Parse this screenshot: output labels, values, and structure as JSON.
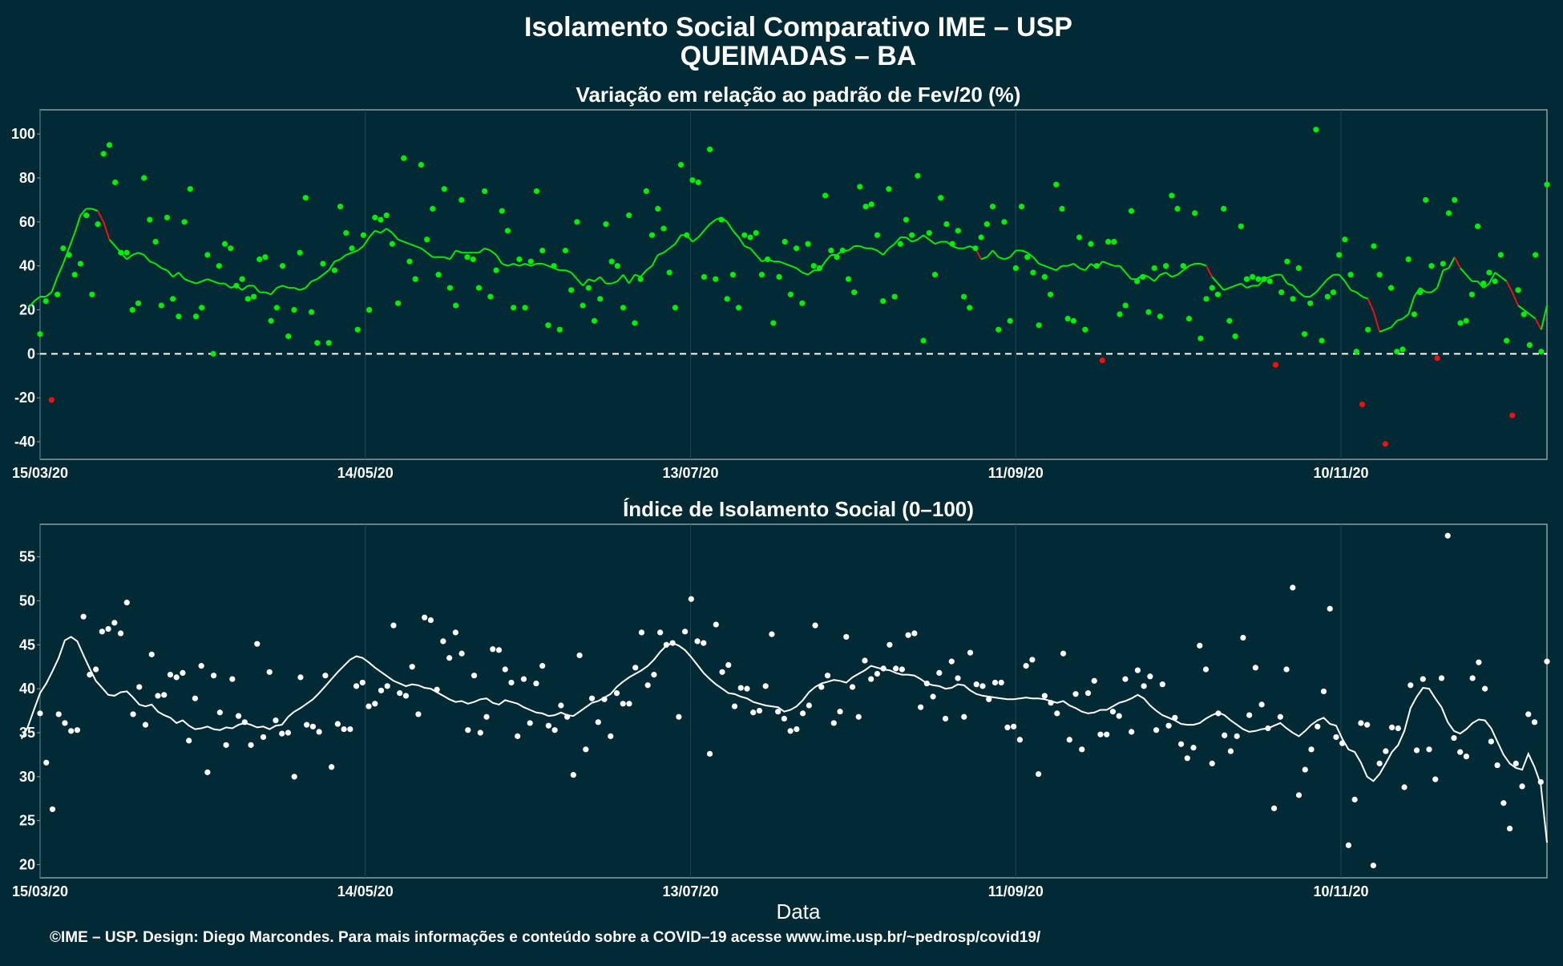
{
  "title_line1": "Isolamento Social Comparativo IME – USP",
  "title_line2": "QUEIMADAS – BA",
  "footer": "©IME – USP. Design: Diego Marcondes. Para mais informações e conteúdo sobre a COVID–19 acesse www.ime.usp.br/~pedrosp/covid19/",
  "colors": {
    "background": "#022a35",
    "panel_border": "#8aa0a6",
    "grid": "#1e4a55",
    "positive": "#00ee00",
    "negative": "#ee1111",
    "index": "#ffffff"
  },
  "chart_data": [
    {
      "type": "scatter",
      "title": "Variação em relação ao padrão de Fev/20 (%)",
      "xlabel": "",
      "ylabel": "",
      "x_ticks": [
        "15/03/20",
        "14/05/20",
        "13/07/20",
        "11/09/20",
        "10/11/20"
      ],
      "x_range": [
        "2020-03-15",
        "2020-12-18"
      ],
      "ylim": [
        -48,
        111
      ],
      "y_ticks": [
        -40,
        -20,
        0,
        20,
        40,
        60,
        80,
        100
      ],
      "reference_line": 0,
      "grid": true,
      "series": [
        {
          "role": "daily_points",
          "values": [
            9,
            24,
            -21,
            27,
            48,
            45,
            36,
            41,
            63,
            27,
            59,
            91,
            95,
            78,
            46,
            46,
            20,
            23,
            80,
            61,
            51,
            22,
            62,
            25,
            17,
            60,
            75,
            17,
            21,
            45,
            0,
            40,
            50,
            48,
            31,
            34,
            25,
            26,
            43,
            44,
            15,
            21,
            40,
            8,
            20,
            46,
            71,
            19,
            5,
            41,
            5,
            38,
            67,
            55,
            48,
            11,
            54,
            20,
            62,
            61,
            63,
            50,
            23,
            89,
            42,
            34,
            86,
            52,
            66,
            36,
            75,
            30,
            22,
            70,
            44,
            43,
            30,
            74,
            26,
            38,
            65,
            56,
            21,
            43,
            21,
            42,
            74,
            47,
            13,
            40,
            11,
            47,
            29,
            60,
            22,
            30,
            15,
            25,
            59,
            42,
            40,
            21,
            63,
            14,
            34,
            74,
            54,
            66,
            57,
            37,
            21,
            86,
            54,
            79,
            78,
            35,
            93,
            34,
            61,
            25,
            36,
            21,
            54,
            53,
            55,
            36,
            43,
            14,
            35,
            51,
            27,
            48,
            23,
            50,
            40,
            39,
            72,
            47,
            44,
            47,
            34,
            28,
            76,
            67,
            68,
            54,
            24,
            75,
            26,
            50,
            61,
            54,
            81,
            6,
            55,
            36,
            71,
            59,
            50,
            56,
            26,
            21,
            48,
            53,
            59,
            67,
            11,
            60,
            15,
            39,
            67,
            44,
            37,
            13,
            35,
            27,
            77,
            66,
            16,
            15,
            53,
            11,
            50,
            40,
            -3,
            51,
            51,
            18,
            22,
            65,
            33,
            35,
            19,
            39,
            17,
            40,
            72,
            66,
            40,
            16,
            64,
            7,
            25,
            30,
            27,
            66,
            15,
            8,
            58,
            34,
            35,
            34,
            34,
            33,
            -5,
            28,
            42,
            25,
            39,
            9,
            23,
            102,
            6,
            26,
            28,
            45,
            52,
            36,
            1,
            -23,
            11,
            49,
            36,
            -41,
            30,
            1,
            2,
            43,
            18,
            28,
            70,
            40,
            -2,
            41,
            64,
            70,
            14,
            15,
            27,
            58,
            32,
            37,
            33,
            45,
            6,
            -28,
            29,
            18,
            4,
            45,
            1,
            77
          ]
        },
        {
          "role": "moving_average",
          "values": [
            21,
            24,
            26,
            26,
            28,
            35,
            41,
            48,
            55,
            63,
            66,
            66,
            65,
            60,
            52,
            49,
            46,
            43,
            45,
            46,
            45,
            42,
            41,
            39,
            38,
            35,
            37,
            34,
            33,
            32,
            33,
            34,
            33,
            32,
            32,
            30,
            31,
            29,
            31,
            31,
            28,
            28,
            27,
            30,
            31,
            30,
            30,
            29,
            30,
            33,
            34,
            36,
            38,
            42,
            43,
            45,
            46,
            47,
            49,
            53,
            56,
            55,
            57,
            55,
            52,
            51,
            50,
            49,
            48,
            46,
            44,
            44,
            44,
            43,
            47,
            46,
            46,
            46,
            46,
            48,
            47,
            45,
            41,
            40,
            41,
            40,
            41,
            40,
            41,
            41,
            40,
            39,
            38,
            38,
            37,
            34,
            31,
            34,
            33,
            35,
            32,
            32,
            33,
            36,
            32,
            36,
            35,
            38,
            40,
            45,
            46,
            48,
            50,
            54,
            54,
            51,
            53,
            56,
            59,
            61,
            62,
            60,
            56,
            53,
            49,
            48,
            45,
            42,
            43,
            42,
            42,
            41,
            40,
            39,
            37,
            36,
            38,
            38,
            42,
            45,
            45,
            47,
            47,
            49,
            49,
            48,
            48,
            47,
            45,
            48,
            50,
            53,
            53,
            51,
            52,
            54,
            52,
            50,
            51,
            51,
            49,
            48,
            48,
            49,
            48,
            43,
            44,
            47,
            44,
            43,
            44,
            47,
            47,
            46,
            44,
            41,
            40,
            39,
            38,
            40,
            40,
            41,
            39,
            38,
            41,
            39,
            42,
            41,
            40,
            40,
            37,
            34,
            34,
            36,
            35,
            33,
            36,
            37,
            35,
            36,
            38,
            40,
            41,
            41,
            40,
            35,
            32,
            29,
            30,
            31,
            32,
            30,
            31,
            31,
            34,
            35,
            36,
            36,
            32,
            31,
            28,
            26,
            26,
            28,
            31,
            34,
            36,
            36,
            33,
            29,
            28,
            26,
            25,
            19,
            10,
            11,
            12,
            15,
            16,
            18,
            26,
            30,
            28,
            28,
            30,
            38,
            39,
            44,
            39,
            36,
            33,
            33,
            30,
            32,
            37,
            35,
            33,
            28,
            22,
            20,
            18,
            16,
            11,
            22
          ]
        }
      ]
    },
    {
      "type": "scatter",
      "title": "Índice de Isolamento Social (0–100)",
      "xlabel": "Data",
      "ylabel": "",
      "x_ticks": [
        "15/03/20",
        "14/05/20",
        "13/07/20",
        "11/09/20",
        "10/11/20"
      ],
      "x_range": [
        "2020-03-15",
        "2020-12-18"
      ],
      "ylim": [
        18.5,
        58.7
      ],
      "y_ticks": [
        20,
        25,
        30,
        35,
        40,
        45,
        50,
        55
      ],
      "grid": true,
      "series": [
        {
          "role": "daily_points",
          "values": [
            37.2,
            31.6,
            26.3,
            37.1,
            36.1,
            35.2,
            35.3,
            48.2,
            41.6,
            42.2,
            46.5,
            46.8,
            47.5,
            46.3,
            49.8,
            37.1,
            40.2,
            35.9,
            43.9,
            39.2,
            39.3,
            41.6,
            41.3,
            41.8,
            34.1,
            38.9,
            42.6,
            30.5,
            41.5,
            37.3,
            33.6,
            41.1,
            36.9,
            36.2,
            33.6,
            45.1,
            34.5,
            41.9,
            36.4,
            34.9,
            35.0,
            30.0,
            41.3,
            35.9,
            35.7,
            35.1,
            41.5,
            31.1,
            36.0,
            35.4,
            35.4,
            40.3,
            40.7,
            38.0,
            38.3,
            39.8,
            40.3,
            47.2,
            39.5,
            39.2,
            42.5,
            37.1,
            48.1,
            47.8,
            39.9,
            45.4,
            43.5,
            46.4,
            44.0,
            35.3,
            41.5,
            35.0,
            36.8,
            44.5,
            44.4,
            42.2,
            40.7,
            34.6,
            41.1,
            36.1,
            40.6,
            42.6,
            35.8,
            35.3,
            38.1,
            36.8,
            30.2,
            43.8,
            33.1,
            38.9,
            36.2,
            38.8,
            34.6,
            39.5,
            38.3,
            38.3,
            42.4,
            46.4,
            40.4,
            41.6,
            46.4,
            45.0,
            45.2,
            36.8,
            46.5,
            50.2,
            45.4,
            45.2,
            32.6,
            47.3,
            41.9,
            42.7,
            38.0,
            40.1,
            40.0,
            37.3,
            37.5,
            40.3,
            46.2,
            37.4,
            36.6,
            35.2,
            35.4,
            37.2,
            38.1,
            47.2,
            40.2,
            41.5,
            36.1,
            37.4,
            45.9,
            40.2,
            36.8,
            43.2,
            41.1,
            41.7,
            42.3,
            45.0,
            42.3,
            42.2,
            46.1,
            46.3,
            37.9,
            40.6,
            39.1,
            41.8,
            36.6,
            43.1,
            41.2,
            36.8,
            44.1,
            40.5,
            40.3,
            38.8,
            40.7,
            40.7,
            35.6,
            35.7,
            34.2,
            42.6,
            43.3,
            30.3,
            39.2,
            38.4,
            37.2,
            44.0,
            34.2,
            39.4,
            33.1,
            39.5,
            40.9,
            34.8,
            34.8,
            37.4,
            36.9,
            41.1,
            35.1,
            42.1,
            40.3,
            41.4,
            35.3,
            40.5,
            35.8,
            36.7,
            33.7,
            32.1,
            33.3,
            44.9,
            42.2,
            31.5,
            37.2,
            34.7,
            32.9,
            34.6,
            45.8,
            37.0,
            42.4,
            38.2,
            35.5,
            26.4,
            36.8,
            42.2,
            51.5,
            27.9,
            30.8,
            33.1,
            35.7,
            39.7,
            49.1,
            34.5,
            33.8,
            22.2,
            27.4,
            36.1,
            35.9,
            19.9,
            31.5,
            32.9,
            35.6,
            35.5,
            28.8,
            40.4,
            33.0,
            41.1,
            33.1,
            29.7,
            41.2,
            57.4,
            34.4,
            32.8,
            32.3,
            41.2,
            43.0,
            40.0,
            34.0,
            31.3,
            27.0,
            24.1,
            31.5,
            28.9,
            37.1,
            36.2,
            29.4,
            43.1
          ]
        },
        {
          "role": "moving_average",
          "values": [
            34.3,
            35.6,
            37.6,
            39.5,
            40.6,
            42.0,
            43.5,
            45.5,
            45.9,
            45.4,
            43.8,
            42.3,
            40.9,
            40.1,
            39.3,
            39.2,
            39.6,
            39.7,
            39.0,
            38.2,
            38.0,
            38.2,
            37.4,
            37.0,
            36.7,
            36.1,
            36.4,
            35.8,
            35.4,
            35.5,
            35.7,
            35.4,
            35.3,
            35.6,
            35.5,
            35.9,
            36.1,
            35.9,
            35.6,
            35.7,
            35.4,
            35.8,
            35.9,
            36.8,
            37.4,
            37.8,
            38.3,
            38.8,
            39.5,
            40.3,
            41.1,
            41.9,
            42.6,
            43.3,
            43.7,
            43.5,
            43.0,
            42.4,
            41.9,
            41.4,
            40.9,
            40.6,
            40.3,
            40.5,
            40.4,
            40.1,
            40.0,
            39.6,
            39.2,
            38.8,
            38.5,
            38.6,
            38.3,
            38.5,
            38.8,
            38.9,
            38.4,
            38.2,
            38.7,
            38.5,
            38.3,
            37.9,
            37.6,
            37.3,
            37.2,
            36.9,
            37.0,
            37.3,
            37.0,
            36.9,
            37.4,
            37.9,
            38.4,
            38.6,
            39.0,
            39.4,
            40.2,
            40.8,
            41.3,
            41.7,
            42.1,
            42.6,
            43.3,
            44.2,
            44.9,
            45.2,
            44.9,
            44.4,
            43.6,
            42.7,
            41.8,
            41.1,
            40.5,
            40.0,
            39.5,
            39.4,
            39.1,
            38.9,
            38.5,
            38.3,
            38.1,
            38.0,
            37.9,
            37.4,
            37.6,
            38.0,
            38.7,
            39.6,
            40.2,
            40.6,
            40.8,
            41.0,
            40.9,
            40.7,
            41.3,
            41.7,
            42.1,
            42.6,
            42.4,
            42.2,
            42.1,
            41.8,
            41.6,
            41.6,
            41.5,
            41.1,
            40.6,
            40.4,
            40.3,
            40.0,
            40.1,
            40.5,
            40.4,
            39.8,
            39.4,
            39.2,
            39.1,
            39.0,
            38.9,
            38.8,
            38.8,
            38.9,
            39.0,
            38.9,
            38.9,
            38.8,
            38.6,
            38.4,
            38.6,
            38.1,
            37.8,
            37.4,
            37.2,
            37.3,
            37.6,
            37.6,
            38.0,
            38.4,
            38.6,
            38.9,
            39.3,
            38.9,
            38.1,
            37.5,
            37.0,
            36.7,
            36.4,
            36.0,
            35.9,
            35.9,
            36.1,
            36.6,
            37.0,
            37.3,
            37.0,
            36.4,
            35.9,
            35.4,
            35.1,
            35.2,
            35.4,
            35.5,
            35.8,
            36.1,
            35.5,
            35.0,
            34.6,
            35.2,
            35.9,
            36.4,
            36.7,
            36.0,
            35.8,
            34.3,
            33.1,
            32.8,
            31.6,
            30.0,
            29.5,
            30.3,
            31.5,
            32.8,
            33.6,
            35.2,
            37.8,
            39.1,
            40.1,
            40.0,
            38.9,
            37.9,
            36.2,
            35.2,
            34.9,
            35.4,
            36.1,
            36.5,
            36.4,
            35.5,
            34.0,
            32.5,
            31.5,
            31.0,
            30.8,
            32.6,
            31.1,
            29.1,
            22.5
          ]
        }
      ]
    }
  ]
}
